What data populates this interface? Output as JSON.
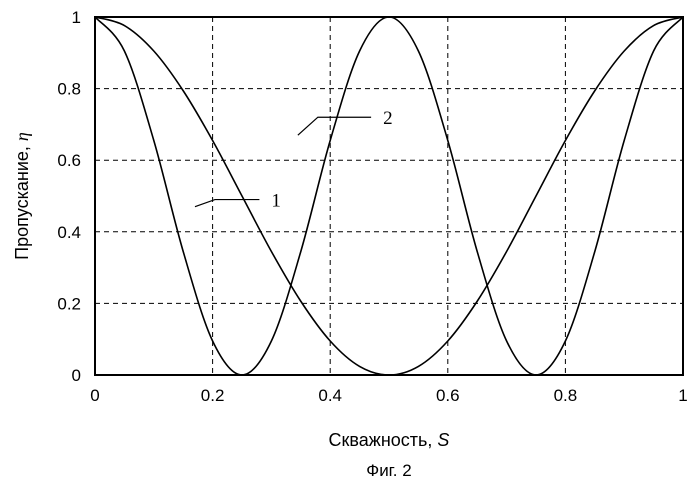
{
  "chart_data": {
    "type": "line",
    "xlabel_text": "Скважность, ",
    "xlabel_var": "S",
    "ylabel_text": "Пропускание, ",
    "ylabel_var": "η",
    "caption": "Фиг. 2",
    "xlim": [
      0,
      1
    ],
    "ylim": [
      0,
      1
    ],
    "x_ticks": [
      0,
      0.2,
      0.4,
      0.6,
      0.8,
      1
    ],
    "x_tick_labels": [
      "0",
      "0.2",
      "0.4",
      "0.6",
      "0.8",
      "1"
    ],
    "y_ticks": [
      0,
      0.2,
      0.4,
      0.6,
      0.8,
      1
    ],
    "y_tick_labels": [
      "0",
      "0.2",
      "0.4",
      "0.6",
      "0.8",
      "1"
    ],
    "grid": "dashed",
    "series": [
      {
        "name": "1",
        "x": [
          0,
          0.05,
          0.1,
          0.15,
          0.2,
          0.25,
          0.3,
          0.35,
          0.4,
          0.45,
          0.5,
          0.55,
          0.6,
          0.65,
          0.7,
          0.75,
          0.8,
          0.85,
          0.9,
          0.95,
          1
        ],
        "y": [
          1,
          0.905,
          0.655,
          0.345,
          0.095,
          0,
          0.095,
          0.345,
          0.655,
          0.905,
          1,
          0.905,
          0.655,
          0.345,
          0.095,
          0,
          0.095,
          0.345,
          0.655,
          0.905,
          1
        ],
        "label_point": [
          0.17,
          0.47
        ],
        "label_text_pos": [
          0.3,
          0.49
        ]
      },
      {
        "name": "2",
        "x": [
          0,
          0.05,
          0.1,
          0.15,
          0.2,
          0.25,
          0.3,
          0.35,
          0.4,
          0.45,
          0.5,
          0.55,
          0.6,
          0.65,
          0.7,
          0.75,
          0.8,
          0.85,
          0.9,
          0.95,
          1
        ],
        "y": [
          1,
          0.976,
          0.905,
          0.794,
          0.655,
          0.5,
          0.345,
          0.206,
          0.095,
          0.024,
          0,
          0.024,
          0.095,
          0.206,
          0.345,
          0.5,
          0.655,
          0.794,
          0.905,
          0.976,
          1
        ],
        "label_point": [
          0.345,
          0.67
        ],
        "label_text_pos": [
          0.49,
          0.72
        ]
      }
    ]
  }
}
